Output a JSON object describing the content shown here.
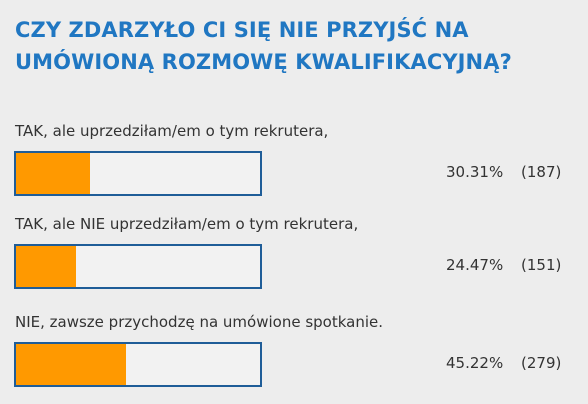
{
  "poll": {
    "question": "CZY ZDARZYŁO CI SIĘ NIE PRZYJŚĆ NA UMÓWIONĄ ROZMOWĘ KWALIFIKACYJNĄ?",
    "accent_color": "#2077c2",
    "bar_fill_color": "#ff9900",
    "bar_border_color": "#1f5d98",
    "options": [
      {
        "label": "TAK, ale uprzedziłam/em o tym rekrutera,",
        "percent": "30.31%",
        "count": "(187)",
        "fill_fraction": 0.3031
      },
      {
        "label": "TAK, ale NIE uprzedziłam/em o tym rekrutera,",
        "percent": "24.47%",
        "count": "(151)",
        "fill_fraction": 0.2447
      },
      {
        "label": "NIE, zawsze przychodzę na umówione spotkanie.",
        "percent": "45.22%",
        "count": "(279)",
        "fill_fraction": 0.4522
      }
    ]
  }
}
